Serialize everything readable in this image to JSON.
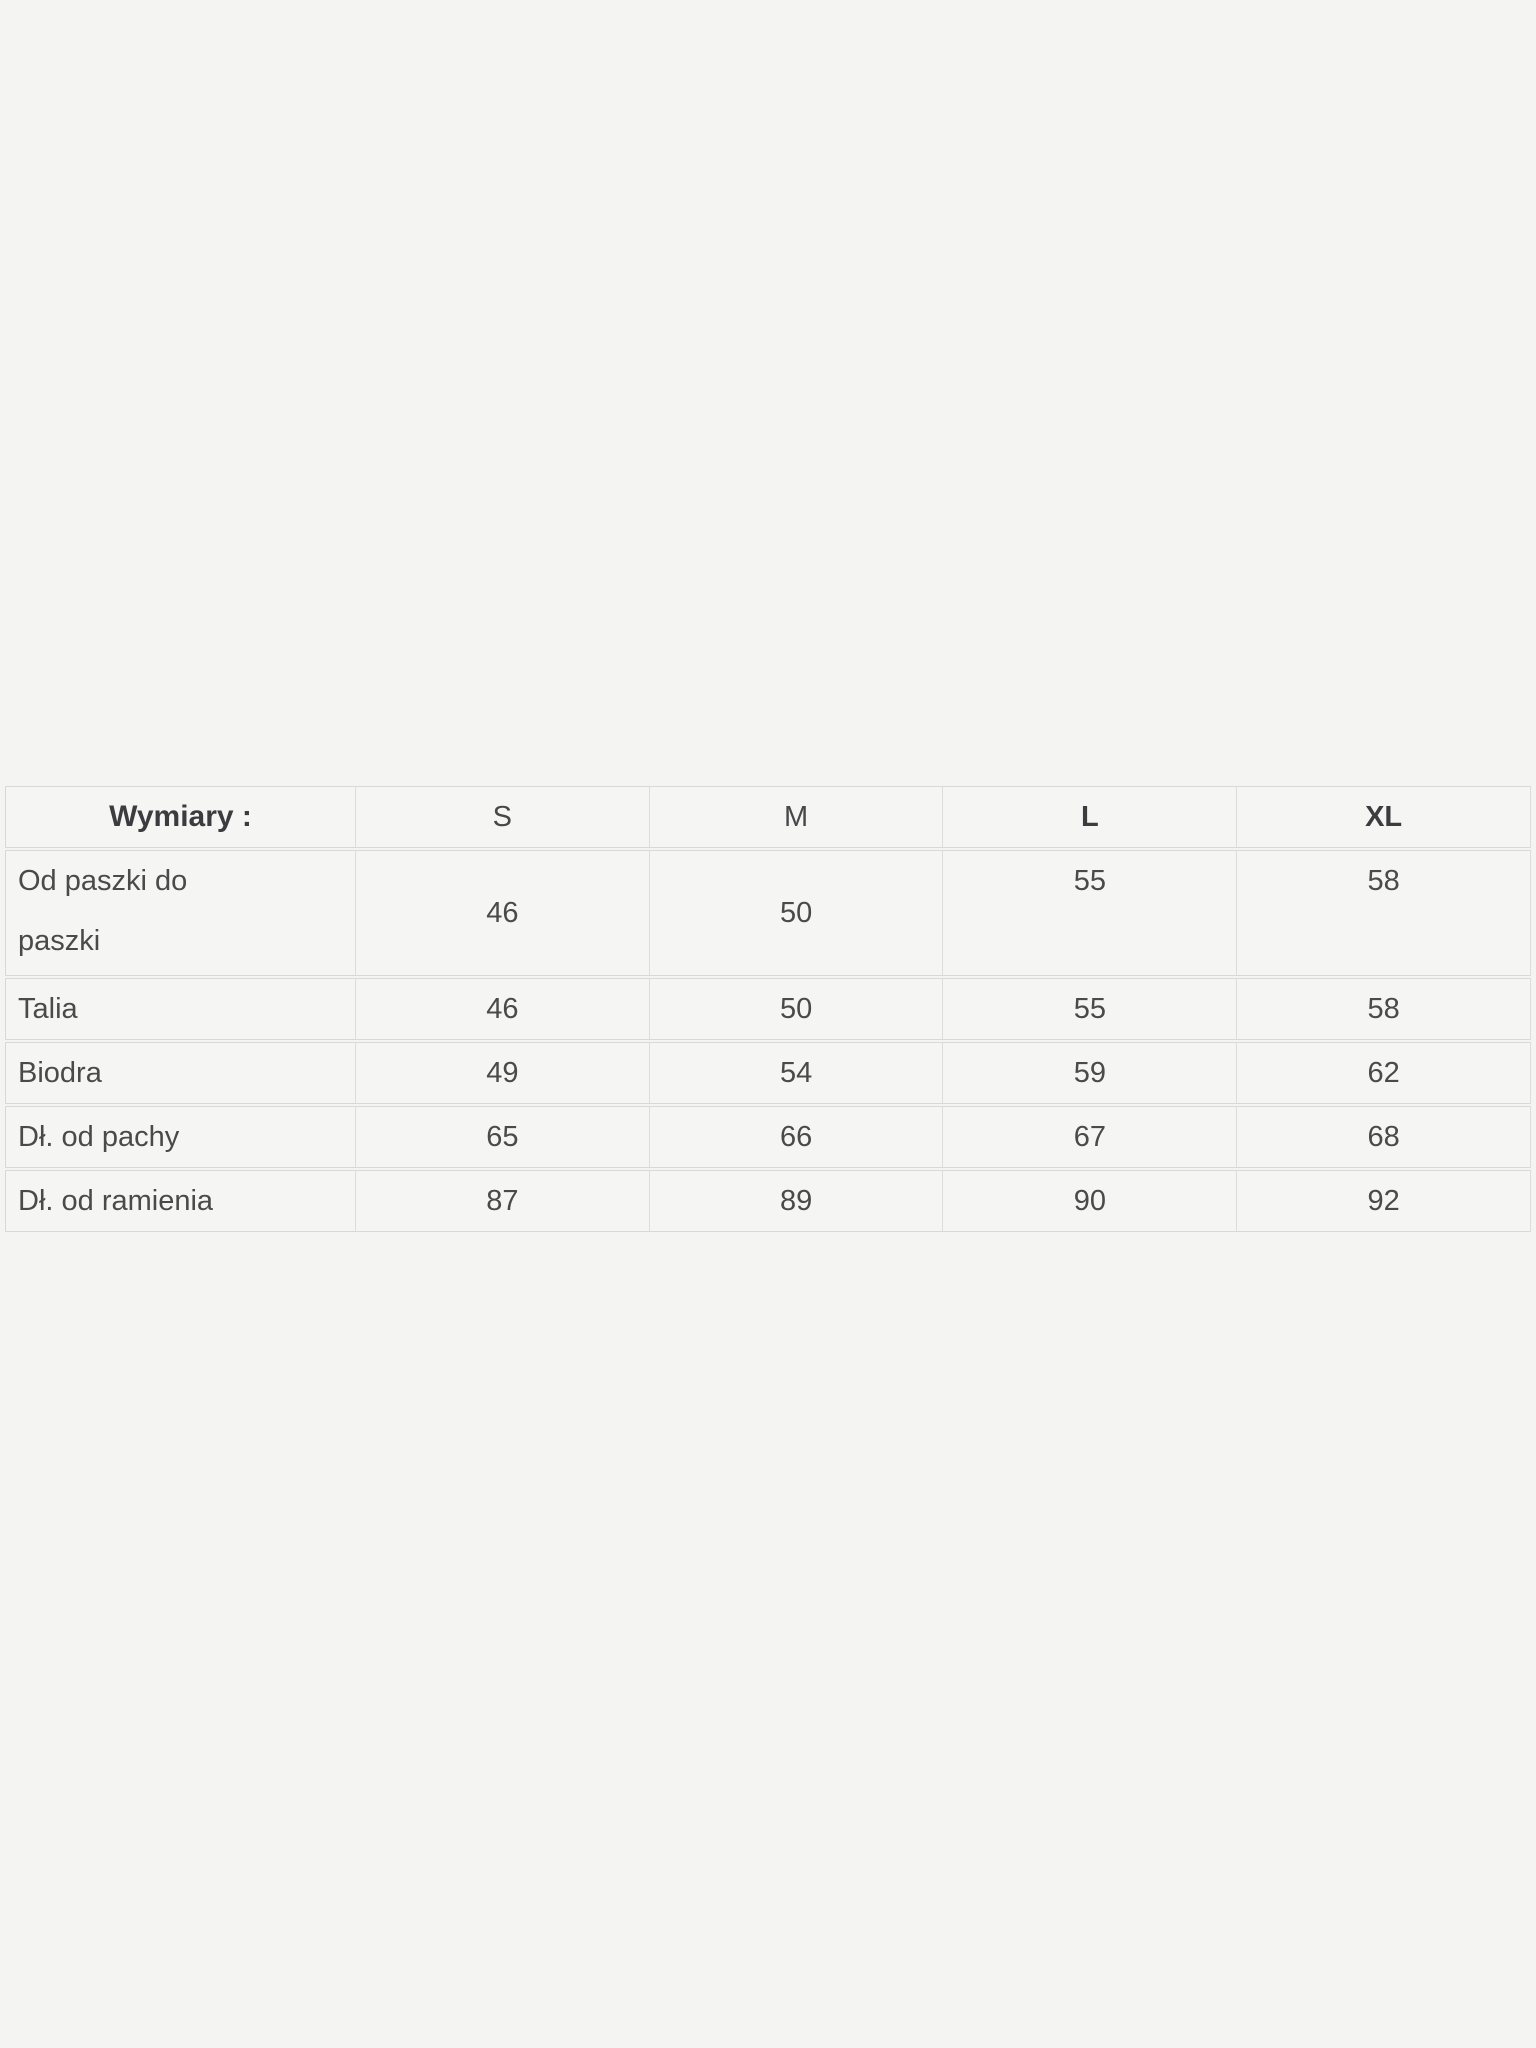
{
  "page": {
    "background_color": "#f4f4f2",
    "text_color": "#4a4a4a",
    "border_color": "#d8d8d7"
  },
  "size_table": {
    "header": {
      "label": "Wymiary :",
      "sizes": [
        "S",
        "M",
        "L",
        "XL"
      ]
    },
    "rows": [
      {
        "label": "Od paszki do paszki",
        "values": [
          "46",
          "50",
          "55",
          "58"
        ]
      },
      {
        "label": "Talia",
        "values": [
          "46",
          "50",
          "55",
          "58"
        ]
      },
      {
        "label": "Biodra",
        "values": [
          "49",
          "54",
          "59",
          "62"
        ]
      },
      {
        "label": "Dł. od pachy",
        "values": [
          "65",
          "66",
          "67",
          "68"
        ]
      },
      {
        "label": "Dł. od ramienia",
        "values": [
          "87",
          "89",
          "90",
          "92"
        ]
      }
    ]
  }
}
